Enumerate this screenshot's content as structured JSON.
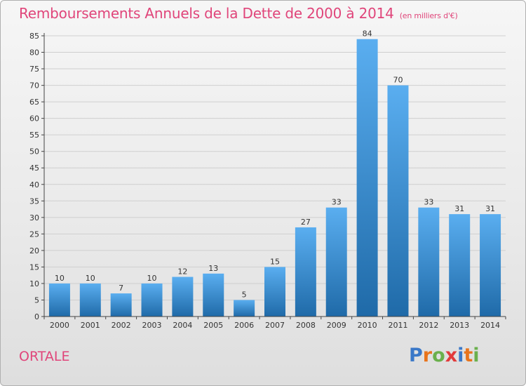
{
  "header": {
    "title": "Remboursements Annuels de la Dette de 2000 à 2014",
    "subtitle": "(en milliers d'€)"
  },
  "footer": {
    "town": "ORTALE",
    "logo_letters": [
      "P",
      "r",
      "o",
      "x",
      "i",
      "t",
      "i"
    ],
    "logo_colors": [
      "#3a78c8",
      "#e8741c",
      "#6ab04c",
      "#e23a3a",
      "#3a78c8",
      "#e8741c",
      "#6ab04c"
    ]
  },
  "colors": {
    "bar_light": "#5aaef0",
    "bar_dark": "#1f6aa8",
    "grid": "#cfcfcf",
    "axis": "#444444",
    "text": "#333333"
  },
  "chart_data": {
    "type": "bar",
    "categories": [
      "2000",
      "2001",
      "2002",
      "2003",
      "2004",
      "2005",
      "2006",
      "2007",
      "2008",
      "2009",
      "2010",
      "2011",
      "2012",
      "2013",
      "2014"
    ],
    "values": [
      10,
      10,
      7,
      10,
      12,
      13,
      5,
      15,
      27,
      33,
      84,
      70,
      33,
      31,
      31
    ],
    "yticks": [
      0,
      5,
      10,
      15,
      20,
      25,
      30,
      35,
      40,
      45,
      50,
      55,
      60,
      65,
      70,
      75,
      80,
      85
    ],
    "ylim": [
      0,
      85
    ],
    "grid": true
  }
}
